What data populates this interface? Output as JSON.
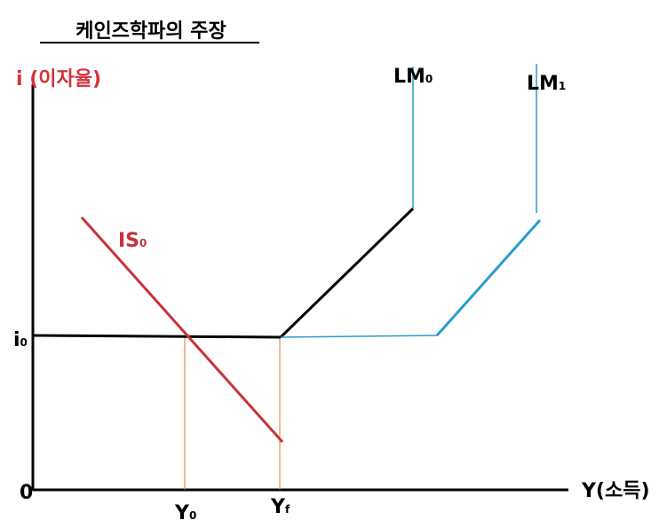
{
  "title": "케인즈학파의 주장",
  "y_axis_label": "i (이자율)",
  "x_axis_label": "Y(소득)",
  "origin_label": "0",
  "labels": {
    "i0": {
      "text": "i",
      "sub": "0"
    },
    "is0": {
      "text": "IS",
      "sub": "0"
    },
    "lm0": {
      "text": "LM",
      "sub": "0"
    },
    "lm1": {
      "text": "LM",
      "sub": "1"
    },
    "y0": {
      "text": "Y",
      "sub": "0"
    },
    "yf": {
      "text": "Y",
      "sub": "f"
    }
  }
}
